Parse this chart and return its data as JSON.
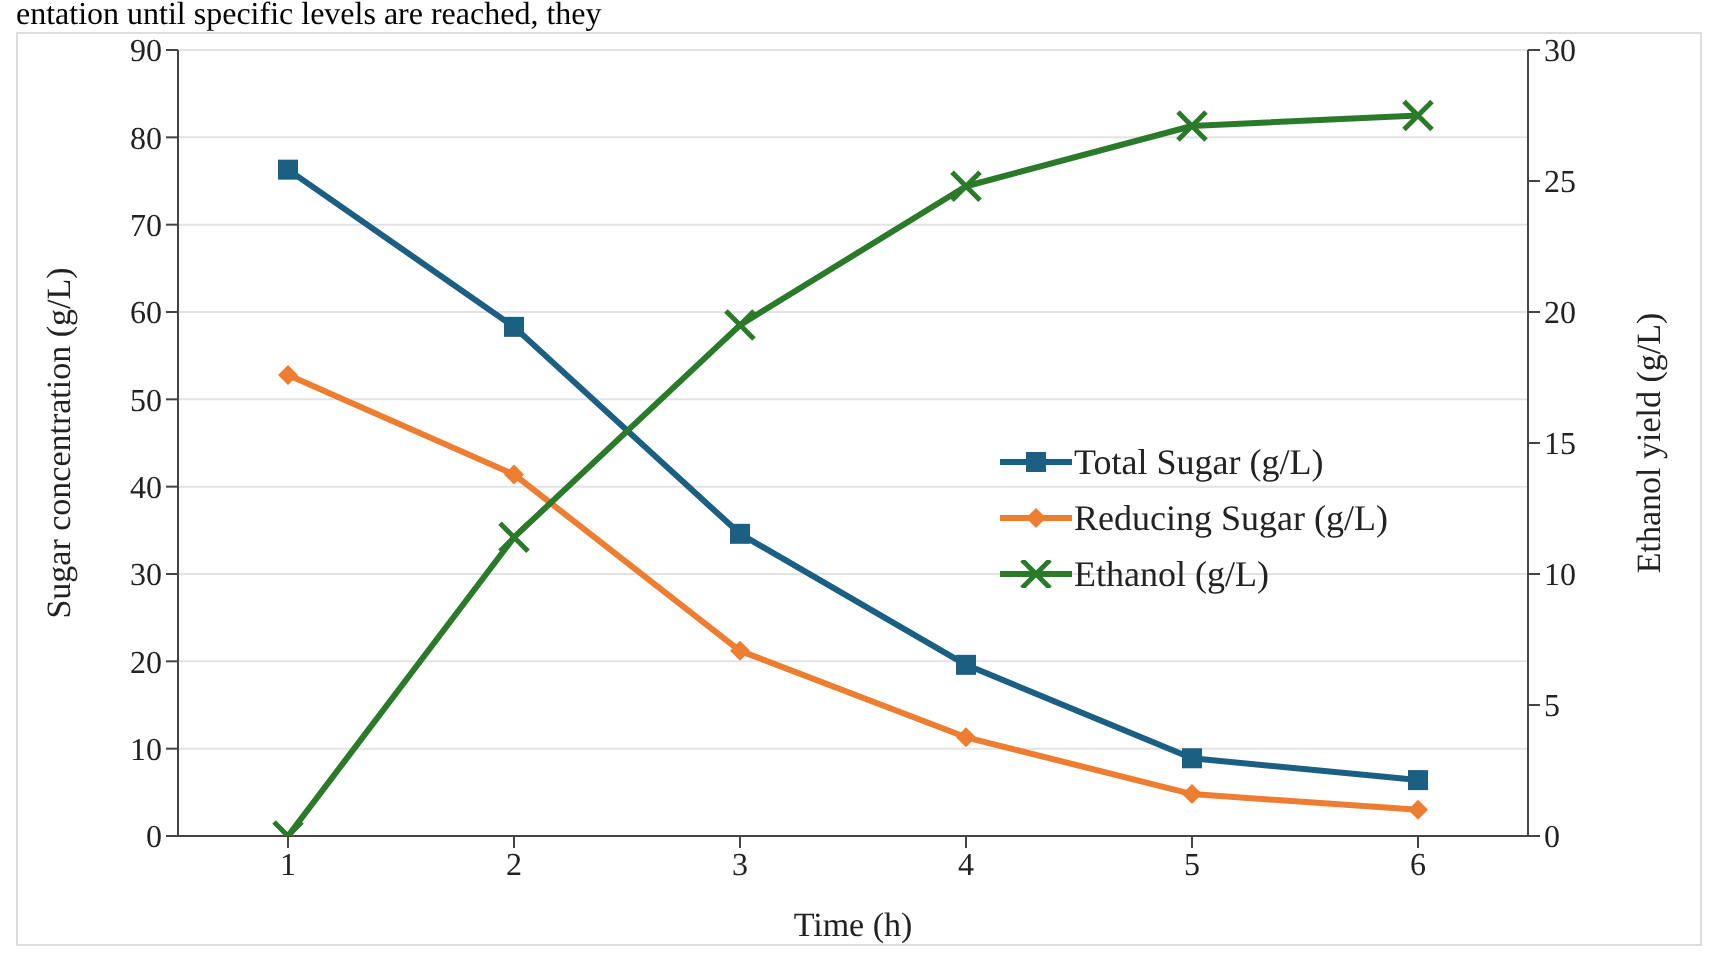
{
  "chart_data": {
    "type": "line",
    "categories": [
      "1",
      "2",
      "3",
      "4",
      "5",
      "6"
    ],
    "xlabel": "Time (h)",
    "ylabel": "Sugar concentration (g/L)",
    "y2label": "Ethanol yield (g/L)",
    "annotations": [
      "entation until specific levels are reached, they"
    ],
    "ylim": [
      0,
      90
    ],
    "yticks": [
      0,
      10,
      20,
      30,
      40,
      50,
      60,
      70,
      80,
      90
    ],
    "y2lim": [
      0,
      30
    ],
    "y2ticks": [
      0,
      5,
      10,
      15,
      20,
      25,
      30
    ],
    "grid": "y",
    "legend": "right",
    "series": [
      {
        "name": "Total Sugar (g/L)",
        "color": "#1b5f83",
        "marker": "square",
        "values": [
          76.3,
          58.3,
          34.6,
          19.6,
          8.9,
          6.4
        ]
      },
      {
        "name": "Reducing Sugar (g/L)",
        "color": "#ed7d31",
        "marker": "diamond",
        "values": [
          52.8,
          41.4,
          21.2,
          11.3,
          4.8,
          3.0
        ]
      },
      {
        "name": "Ethanol (g/L)",
        "color": "#2a7a2a",
        "marker": "cross",
        "axis": "y2",
        "values": [
          0,
          11.4,
          19.5,
          24.8,
          27.1,
          27.5
        ]
      }
    ]
  }
}
